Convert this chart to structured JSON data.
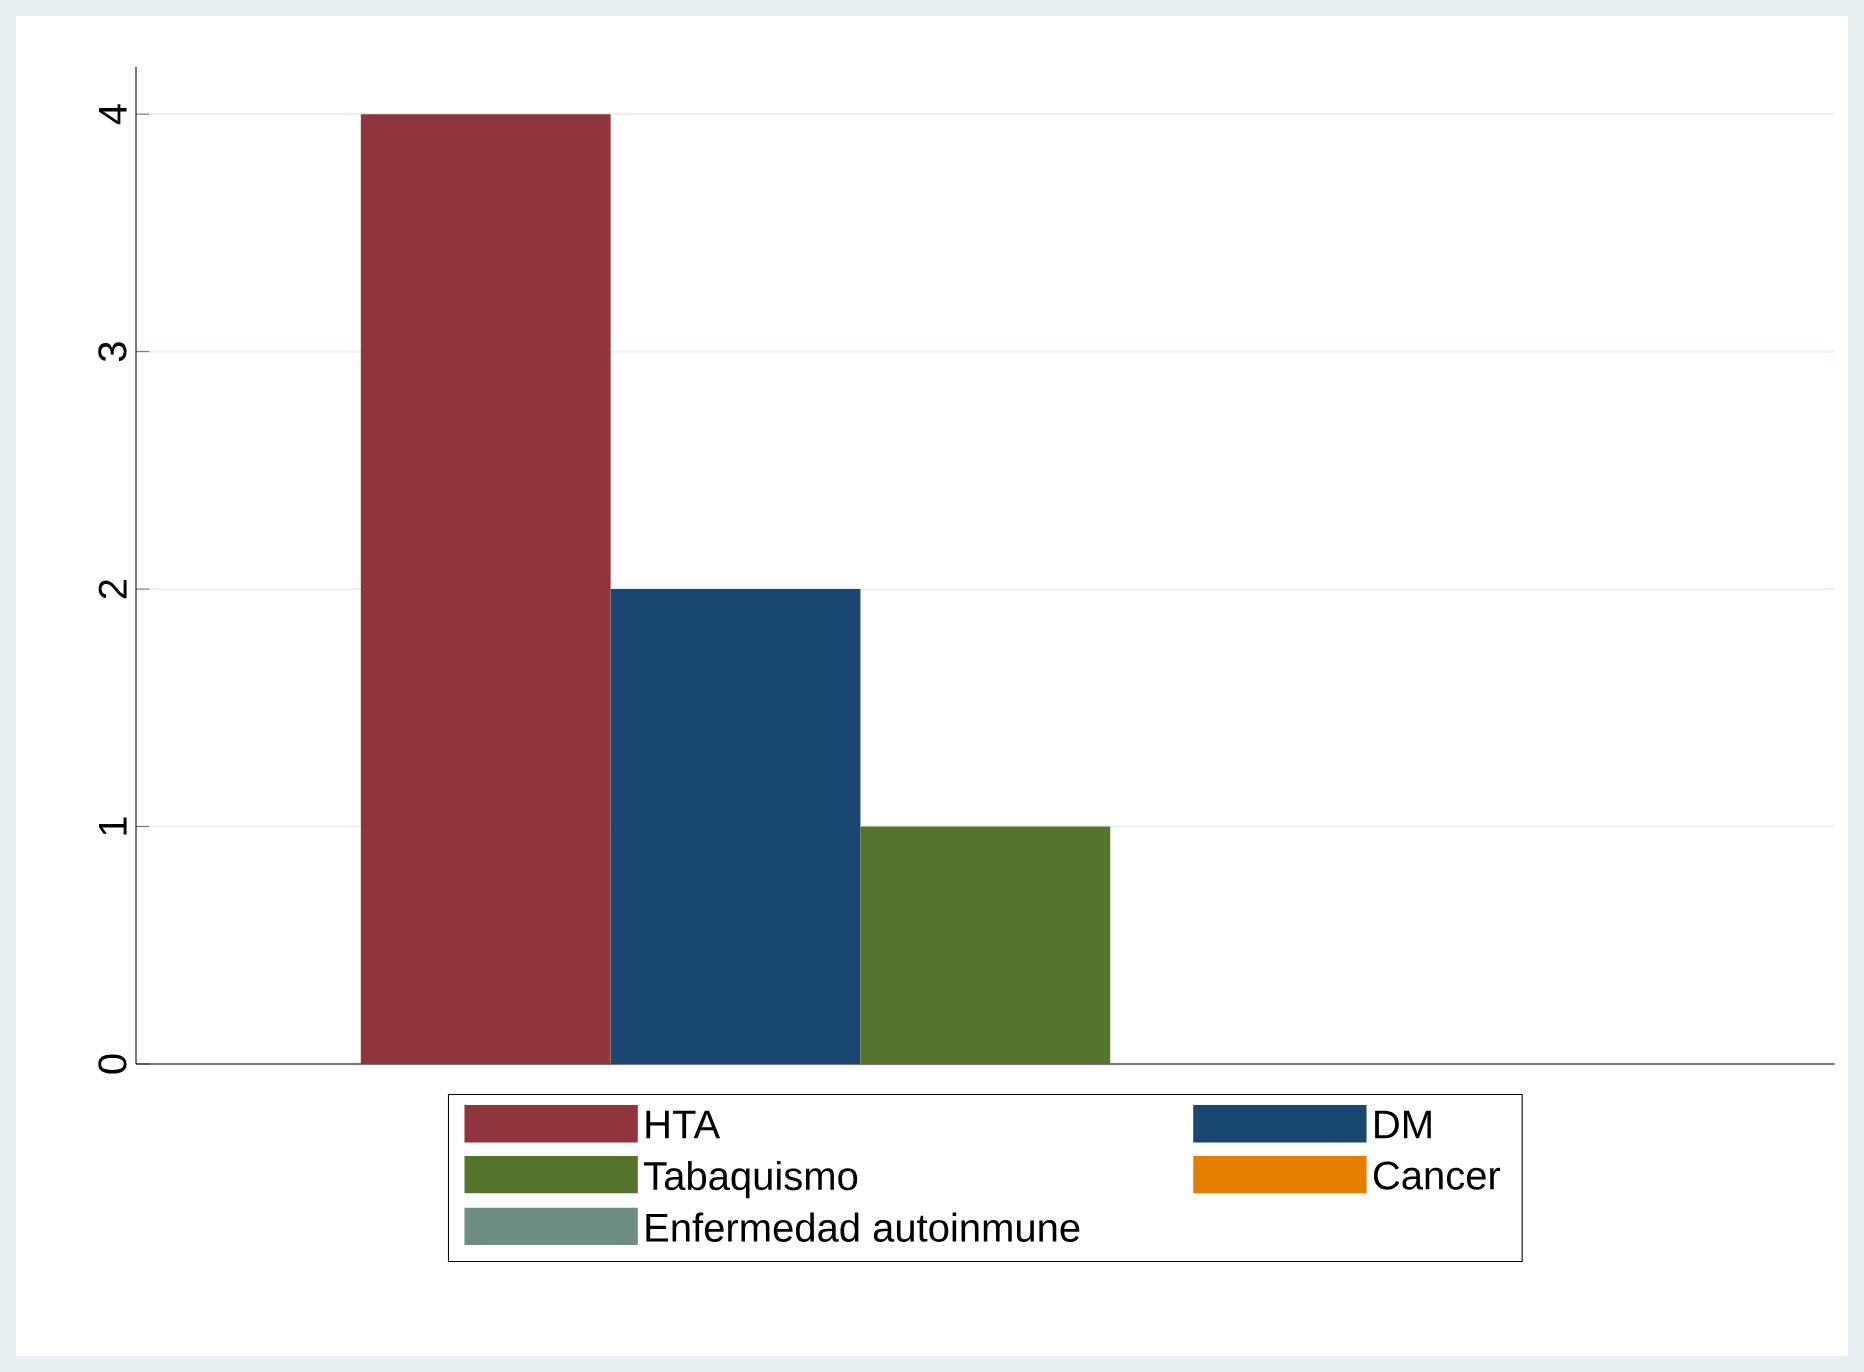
{
  "chart_data": {
    "type": "bar",
    "categories": [
      null
    ],
    "series": [
      {
        "name": "HTA",
        "color": "#90353b",
        "values": [
          4
        ]
      },
      {
        "name": "DM",
        "color": "#1a476f",
        "values": [
          2
        ]
      },
      {
        "name": "Tabaquismo",
        "color": "#55752f",
        "values": [
          1
        ]
      },
      {
        "name": "Cancer",
        "color": "#e37e00",
        "values": [
          0
        ]
      },
      {
        "name": "Enfermedad autoinmune",
        "color": "#6e8e84",
        "values": [
          0
        ]
      }
    ],
    "ylim": [
      0,
      4.2
    ],
    "yticks": [
      0,
      1,
      2,
      3,
      4
    ],
    "grid": "y",
    "legend": "bottom"
  }
}
